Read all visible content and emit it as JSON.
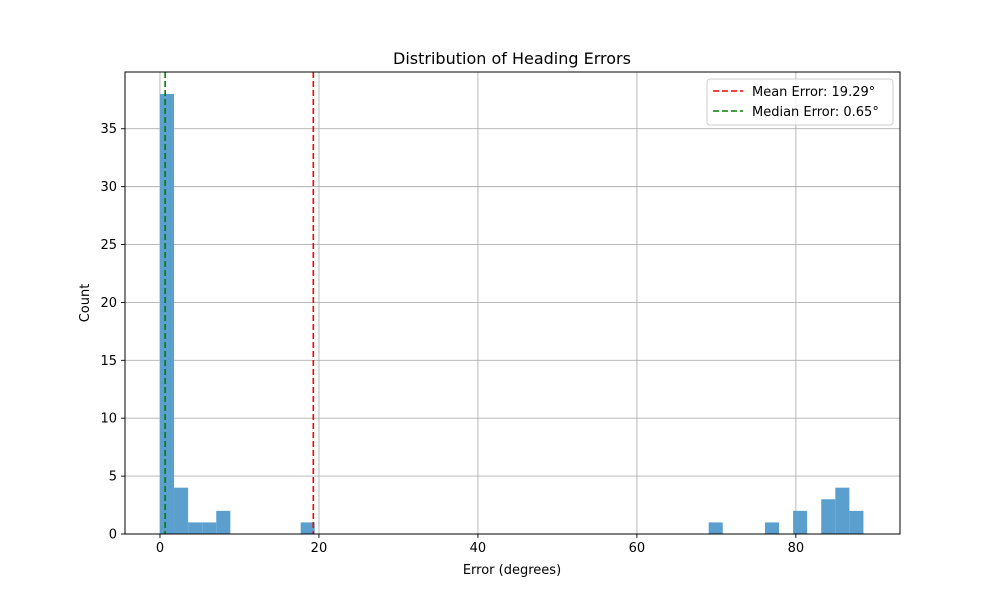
{
  "chart_data": {
    "type": "bar",
    "title": "Distribution of Heading Errors",
    "xlabel": "Error (degrees)",
    "ylabel": "Count",
    "xlim": [
      -4.4,
      93.1
    ],
    "ylim": [
      0,
      39.9
    ],
    "xticks": [
      0,
      20,
      40,
      60,
      80
    ],
    "yticks": [
      0,
      5,
      10,
      15,
      20,
      25,
      30,
      35
    ],
    "grid": true,
    "legend_position": "top-right",
    "bar_color": "#5b9fcf",
    "bins": [
      {
        "x0": 0.0,
        "x1": 1.77,
        "count": 38
      },
      {
        "x0": 1.77,
        "x1": 3.54,
        "count": 4
      },
      {
        "x0": 3.54,
        "x1": 5.31,
        "count": 1
      },
      {
        "x0": 5.31,
        "x1": 7.08,
        "count": 1
      },
      {
        "x0": 7.08,
        "x1": 8.85,
        "count": 2
      },
      {
        "x0": 17.7,
        "x1": 19.47,
        "count": 1
      },
      {
        "x0": 69.03,
        "x1": 70.8,
        "count": 1
      },
      {
        "x0": 76.11,
        "x1": 77.88,
        "count": 1
      },
      {
        "x0": 79.65,
        "x1": 81.42,
        "count": 2
      },
      {
        "x0": 83.19,
        "x1": 84.96,
        "count": 3
      },
      {
        "x0": 84.96,
        "x1": 86.73,
        "count": 4
      },
      {
        "x0": 86.73,
        "x1": 88.5,
        "count": 2
      }
    ],
    "reference_lines": [
      {
        "name": "Mean Error: 19.29°",
        "x": 19.29,
        "color": "#ff0000",
        "style": "dashed"
      },
      {
        "name": "Median Error: 0.65°",
        "x": 0.65,
        "color": "#008000",
        "style": "dashed"
      }
    ]
  }
}
